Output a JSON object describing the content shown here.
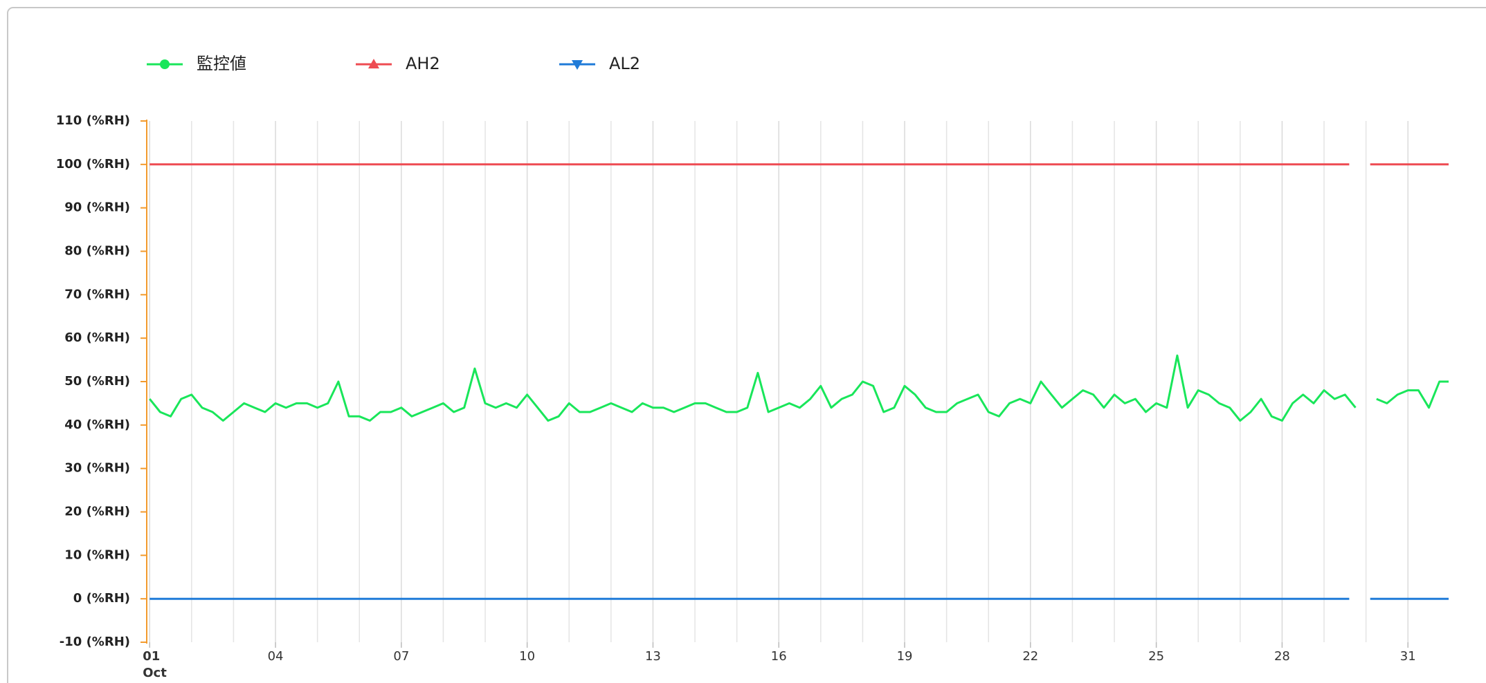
{
  "chart_data": {
    "type": "line",
    "x": [
      1,
      1.25,
      1.5,
      1.75,
      2,
      2.25,
      2.5,
      2.75,
      3,
      3.25,
      3.5,
      3.75,
      4,
      4.25,
      4.5,
      4.75,
      5,
      5.25,
      5.5,
      5.75,
      6,
      6.25,
      6.5,
      6.75,
      7,
      7.25,
      7.5,
      7.75,
      8,
      8.25,
      8.5,
      8.75,
      9,
      9.25,
      9.5,
      9.75,
      10,
      10.25,
      10.5,
      10.75,
      11,
      11.25,
      11.5,
      11.75,
      12,
      12.25,
      12.5,
      12.75,
      13,
      13.25,
      13.5,
      13.75,
      14,
      14.25,
      14.5,
      14.75,
      15,
      15.25,
      15.5,
      15.75,
      16,
      16.25,
      16.5,
      16.75,
      17,
      17.25,
      17.5,
      17.75,
      18,
      18.25,
      18.5,
      18.75,
      19,
      19.25,
      19.5,
      19.75,
      20,
      20.25,
      20.5,
      20.75,
      21,
      21.25,
      21.5,
      21.75,
      22,
      22.25,
      22.5,
      22.75,
      23,
      23.25,
      23.5,
      23.75,
      24,
      24.25,
      24.5,
      24.75,
      25,
      25.25,
      25.5,
      25.75,
      26,
      26.25,
      26.5,
      26.75,
      27,
      27.25,
      27.5,
      27.75,
      28,
      28.25,
      28.5,
      28.75,
      29,
      29.25,
      29.5,
      29.75,
      30,
      30.25,
      30.5,
      30.75,
      31,
      31.25,
      31.5,
      31.75,
      31.97
    ],
    "series": [
      {
        "name": "監控値",
        "color": "#19e65a",
        "marker": "circle",
        "values": [
          46,
          43,
          42,
          46,
          47,
          44,
          43,
          41,
          43,
          45,
          44,
          43,
          45,
          44,
          45,
          45,
          44,
          45,
          50,
          42,
          42,
          41,
          43,
          43,
          44,
          42,
          43,
          44,
          45,
          43,
          44,
          53,
          45,
          44,
          45,
          44,
          47,
          44,
          41,
          42,
          45,
          43,
          43,
          44,
          45,
          44,
          43,
          45,
          44,
          44,
          43,
          44,
          45,
          45,
          44,
          43,
          43,
          44,
          52,
          43,
          44,
          45,
          44,
          46,
          49,
          44,
          46,
          47,
          50,
          49,
          43,
          44,
          49,
          47,
          44,
          43,
          43,
          45,
          46,
          47,
          43,
          42,
          45,
          46,
          45,
          50,
          47,
          44,
          46,
          48,
          47,
          44,
          47,
          45,
          46,
          43,
          45,
          44,
          56,
          44,
          48,
          47,
          45,
          44,
          41,
          43,
          46,
          42,
          41,
          45,
          47,
          45,
          48,
          46,
          47,
          44,
          null,
          46,
          45,
          47,
          48,
          48,
          44,
          50,
          50
        ]
      },
      {
        "name": "AH2",
        "color": "#ee4b52",
        "marker": "triangle-up",
        "x": [
          1,
          29.6,
          29.8,
          30.1,
          31.97
        ],
        "values": [
          100,
          100,
          null,
          100,
          100
        ]
      },
      {
        "name": "AL2",
        "color": "#1f7bd8",
        "marker": "triangle-down",
        "x": [
          1,
          29.6,
          29.8,
          30.1,
          31.97
        ],
        "values": [
          0,
          0,
          null,
          0,
          0
        ]
      }
    ],
    "xlim": [
      0.93,
      31.97
    ],
    "xticks": [
      {
        "value": 1,
        "label": "01 Oct"
      },
      {
        "value": 4,
        "label": "04"
      },
      {
        "value": 7,
        "label": "07"
      },
      {
        "value": 10,
        "label": "10"
      },
      {
        "value": 13,
        "label": "13"
      },
      {
        "value": 16,
        "label": "16"
      },
      {
        "value": 19,
        "label": "19"
      },
      {
        "value": 22,
        "label": "22"
      },
      {
        "value": 25,
        "label": "25"
      },
      {
        "value": 28,
        "label": "28"
      },
      {
        "value": 31,
        "label": "31"
      }
    ],
    "xminorticks": [
      2,
      3,
      5,
      6,
      8,
      9,
      11,
      12,
      14,
      15,
      17,
      18,
      20,
      21,
      23,
      24,
      26,
      27,
      29,
      30
    ],
    "ylim": [
      -10,
      110
    ],
    "yticks": [
      {
        "value": -10,
        "label": "-10 (%RH)"
      },
      {
        "value": 0,
        "label": "0 (%RH)"
      },
      {
        "value": 10,
        "label": "10 (%RH)"
      },
      {
        "value": 20,
        "label": "20 (%RH)"
      },
      {
        "value": 30,
        "label": "30 (%RH)"
      },
      {
        "value": 40,
        "label": "40 (%RH)"
      },
      {
        "value": 50,
        "label": "50 (%RH)"
      },
      {
        "value": 60,
        "label": "60 (%RH)"
      },
      {
        "value": 70,
        "label": "70 (%RH)"
      },
      {
        "value": 80,
        "label": "80 (%RH)"
      },
      {
        "value": 90,
        "label": "90 (%RH)"
      },
      {
        "value": 100,
        "label": "100 (%RH)"
      },
      {
        "value": 110,
        "label": "110 (%RH)"
      }
    ],
    "grid": true,
    "axis_color": "#f39a2c",
    "legend": "top"
  }
}
